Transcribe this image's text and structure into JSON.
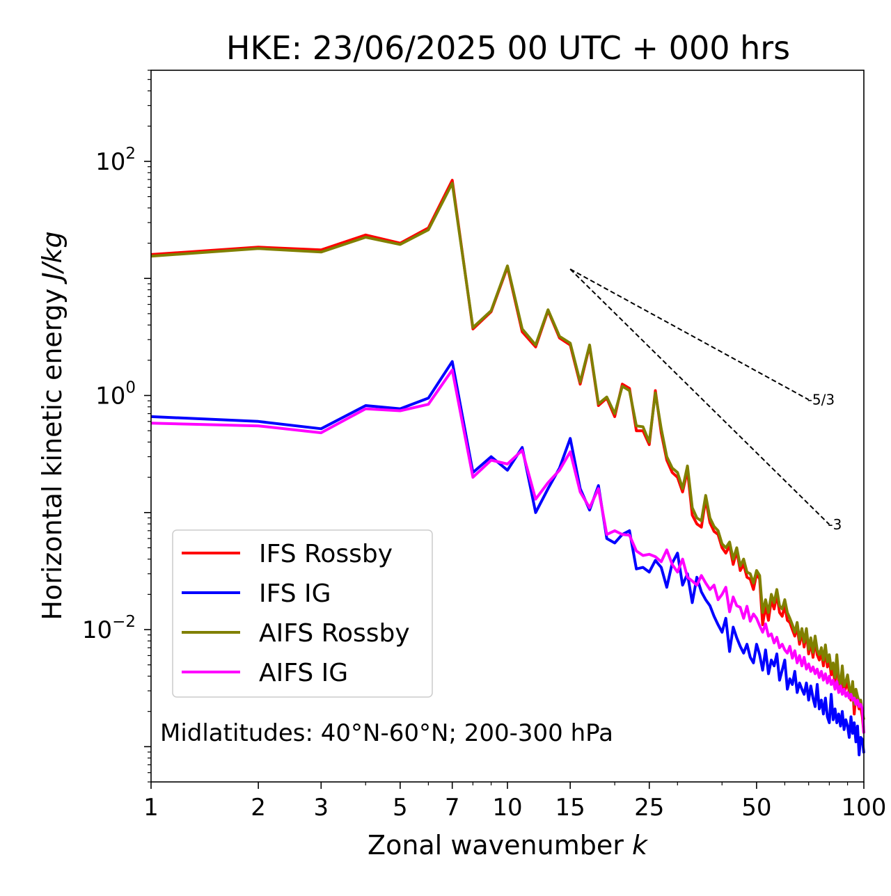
{
  "chart_data": {
    "type": "line",
    "title": "HKE: 23/06/2025 00 UTC + 000 hrs",
    "xlabel": "Zonal wavenumber",
    "xlabel_var": "k",
    "ylabel": "Horizontal kinetic energy",
    "ylabel_unit": "J/kg",
    "xscale": "log",
    "yscale": "log",
    "xlim": [
      1,
      100
    ],
    "ylim": [
      0.0005,
      600
    ],
    "xticks": [
      1,
      2,
      3,
      5,
      7,
      10,
      15,
      25,
      50,
      100
    ],
    "xtick_labels": [
      "1",
      "2",
      "3",
      "5",
      "7",
      "10",
      "15",
      "25",
      "50",
      "100"
    ],
    "yticks": [
      {
        "value": 100,
        "base": "10",
        "exp": "2"
      },
      {
        "value": 1,
        "base": "10",
        "exp": "0"
      },
      {
        "value": 0.01,
        "base": "10",
        "exp": "−2"
      }
    ],
    "annotation": "Midlatitudes: 40°N-60°N; 200-300 hPa",
    "legend_position": "lower-left",
    "reference_slopes": [
      {
        "label": "-5/3",
        "slope": -1.6667,
        "x_start": 15,
        "x_end": 70,
        "y_start": 12
      },
      {
        "label": "-3",
        "slope": -3,
        "x_start": 15,
        "x_end": 80,
        "y_start": 12
      }
    ],
    "x": [
      1,
      2,
      3,
      4,
      5,
      6,
      7,
      8,
      9,
      10,
      11,
      12,
      13,
      14,
      15,
      16,
      17,
      18,
      19,
      20,
      21,
      22,
      23,
      24,
      25,
      26,
      27,
      28,
      29,
      30,
      31,
      32,
      33,
      34,
      35,
      36,
      37,
      38,
      39,
      40,
      41,
      42,
      43,
      44,
      45,
      46,
      47,
      48,
      49,
      50,
      51,
      52,
      53,
      54,
      55,
      56,
      57,
      58,
      59,
      60,
      61,
      62,
      63,
      64,
      65,
      66,
      67,
      68,
      69,
      70,
      71,
      72,
      73,
      74,
      75,
      76,
      77,
      78,
      79,
      80,
      81,
      82,
      83,
      84,
      85,
      86,
      87,
      88,
      89,
      90,
      91,
      92,
      93,
      94,
      95,
      96,
      97,
      98,
      99,
      100
    ],
    "series": [
      {
        "name": "IFS Rossby",
        "color": "#ff0000",
        "values": [
          16,
          18.5,
          17.5,
          23.5,
          20,
          27,
          69,
          3.7,
          5.2,
          12.5,
          3.5,
          2.6,
          5.3,
          3.1,
          2.7,
          1.25,
          2.65,
          0.82,
          0.95,
          0.66,
          1.25,
          1.15,
          0.5,
          0.5,
          0.38,
          1.1,
          0.48,
          0.28,
          0.22,
          0.2,
          0.15,
          0.23,
          0.095,
          0.08,
          0.075,
          0.13,
          0.082,
          0.069,
          0.065,
          0.05,
          0.045,
          0.052,
          0.036,
          0.047,
          0.032,
          0.036,
          0.028,
          0.027,
          0.022,
          0.03,
          0.027,
          0.011,
          0.016,
          0.012,
          0.018,
          0.015,
          0.02,
          0.014,
          0.013,
          0.016,
          0.012,
          0.0115,
          0.01,
          0.0088,
          0.0105,
          0.0075,
          0.0095,
          0.0071,
          0.0095,
          0.0062,
          0.0078,
          0.0058,
          0.0081,
          0.0061,
          0.0055,
          0.0064,
          0.0049,
          0.0068,
          0.0048,
          0.0056,
          0.0041,
          0.0047,
          0.0034,
          0.0058,
          0.0035,
          0.003,
          0.0045,
          0.0029,
          0.0032,
          0.0037,
          0.0029,
          0.0025,
          0.0033,
          0.0019,
          0.0028,
          0.0024,
          0.0021,
          0.0022,
          0.0018,
          0.0013
        ]
      },
      {
        "name": "IFS IG",
        "color": "#0000ff",
        "values": [
          0.66,
          0.6,
          0.52,
          0.82,
          0.77,
          0.95,
          1.95,
          0.22,
          0.3,
          0.23,
          0.36,
          0.1,
          0.16,
          0.24,
          0.43,
          0.16,
          0.105,
          0.17,
          0.06,
          0.055,
          0.065,
          0.07,
          0.033,
          0.034,
          0.031,
          0.039,
          0.034,
          0.023,
          0.037,
          0.045,
          0.024,
          0.03,
          0.017,
          0.028,
          0.021,
          0.018,
          0.016,
          0.013,
          0.011,
          0.0095,
          0.0125,
          0.0065,
          0.0105,
          0.0085,
          0.0072,
          0.0063,
          0.0075,
          0.0058,
          0.0052,
          0.0075,
          0.0061,
          0.0045,
          0.0067,
          0.0042,
          0.0055,
          0.0049,
          0.0062,
          0.0037,
          0.0045,
          0.0055,
          0.0031,
          0.0038,
          0.0034,
          0.0044,
          0.0029,
          0.0035,
          0.0031,
          0.0028,
          0.0035,
          0.0025,
          0.0033,
          0.0026,
          0.0022,
          0.0034,
          0.0021,
          0.0025,
          0.0019,
          0.0026,
          0.0018,
          0.0016,
          0.0028,
          0.0017,
          0.0021,
          0.0016,
          0.0019,
          0.0015,
          0.002,
          0.0014,
          0.0017,
          0.0015,
          0.0012,
          0.0018,
          0.0013,
          0.0016,
          0.0011,
          0.0015,
          0.00085,
          0.0012,
          0.00115,
          0.00088
        ]
      },
      {
        "name": "AIFS Rossby",
        "color": "#808000",
        "values": [
          15.5,
          18,
          16.8,
          22.5,
          19.5,
          26,
          65,
          3.8,
          5.3,
          12.8,
          3.7,
          2.7,
          5.4,
          3.2,
          2.8,
          1.3,
          2.7,
          0.85,
          0.97,
          0.7,
          1.2,
          1.1,
          0.55,
          0.54,
          0.4,
          1.05,
          0.52,
          0.3,
          0.24,
          0.22,
          0.16,
          0.25,
          0.11,
          0.09,
          0.085,
          0.14,
          0.09,
          0.076,
          0.07,
          0.054,
          0.05,
          0.056,
          0.04,
          0.05,
          0.035,
          0.04,
          0.031,
          0.03,
          0.025,
          0.032,
          0.029,
          0.014,
          0.018,
          0.014,
          0.02,
          0.017,
          0.022,
          0.016,
          0.015,
          0.018,
          0.014,
          0.0125,
          0.011,
          0.0095,
          0.0115,
          0.0082,
          0.0102,
          0.0078,
          0.0102,
          0.0068,
          0.0085,
          0.0064,
          0.0088,
          0.0067,
          0.0061,
          0.007,
          0.0055,
          0.0074,
          0.0053,
          0.0061,
          0.0046,
          0.0052,
          0.0039,
          0.0061,
          0.0039,
          0.0034,
          0.0049,
          0.0033,
          0.0036,
          0.0041,
          0.0032,
          0.0028,
          0.0036,
          0.0023,
          0.0031,
          0.0027,
          0.0024,
          0.0025,
          0.002,
          0.0017
        ]
      },
      {
        "name": "AIFS IG",
        "color": "#ff00ff",
        "values": [
          0.58,
          0.55,
          0.48,
          0.77,
          0.74,
          0.84,
          1.65,
          0.2,
          0.28,
          0.26,
          0.34,
          0.13,
          0.18,
          0.23,
          0.33,
          0.15,
          0.11,
          0.16,
          0.065,
          0.07,
          0.065,
          0.064,
          0.047,
          0.043,
          0.044,
          0.042,
          0.038,
          0.048,
          0.036,
          0.031,
          0.04,
          0.028,
          0.026,
          0.024,
          0.029,
          0.025,
          0.022,
          0.024,
          0.018,
          0.02,
          0.023,
          0.0142,
          0.019,
          0.016,
          0.0155,
          0.0125,
          0.0158,
          0.0118,
          0.0136,
          0.0125,
          0.0108,
          0.0095,
          0.0112,
          0.0088,
          0.0092,
          0.0077,
          0.0086,
          0.007,
          0.0075,
          0.0067,
          0.0063,
          0.0072,
          0.0057,
          0.0066,
          0.0052,
          0.006,
          0.0049,
          0.0058,
          0.0046,
          0.0051,
          0.0044,
          0.0048,
          0.0042,
          0.0046,
          0.0039,
          0.0044,
          0.0037,
          0.0042,
          0.0035,
          0.004,
          0.0034,
          0.0037,
          0.0031,
          0.0036,
          0.0029,
          0.0033,
          0.0028,
          0.0031,
          0.0027,
          0.0029,
          0.0026,
          0.0028,
          0.0025,
          0.0026,
          0.0023,
          0.0025,
          0.0022,
          0.0023,
          0.0021,
          0.0013
        ]
      }
    ]
  }
}
